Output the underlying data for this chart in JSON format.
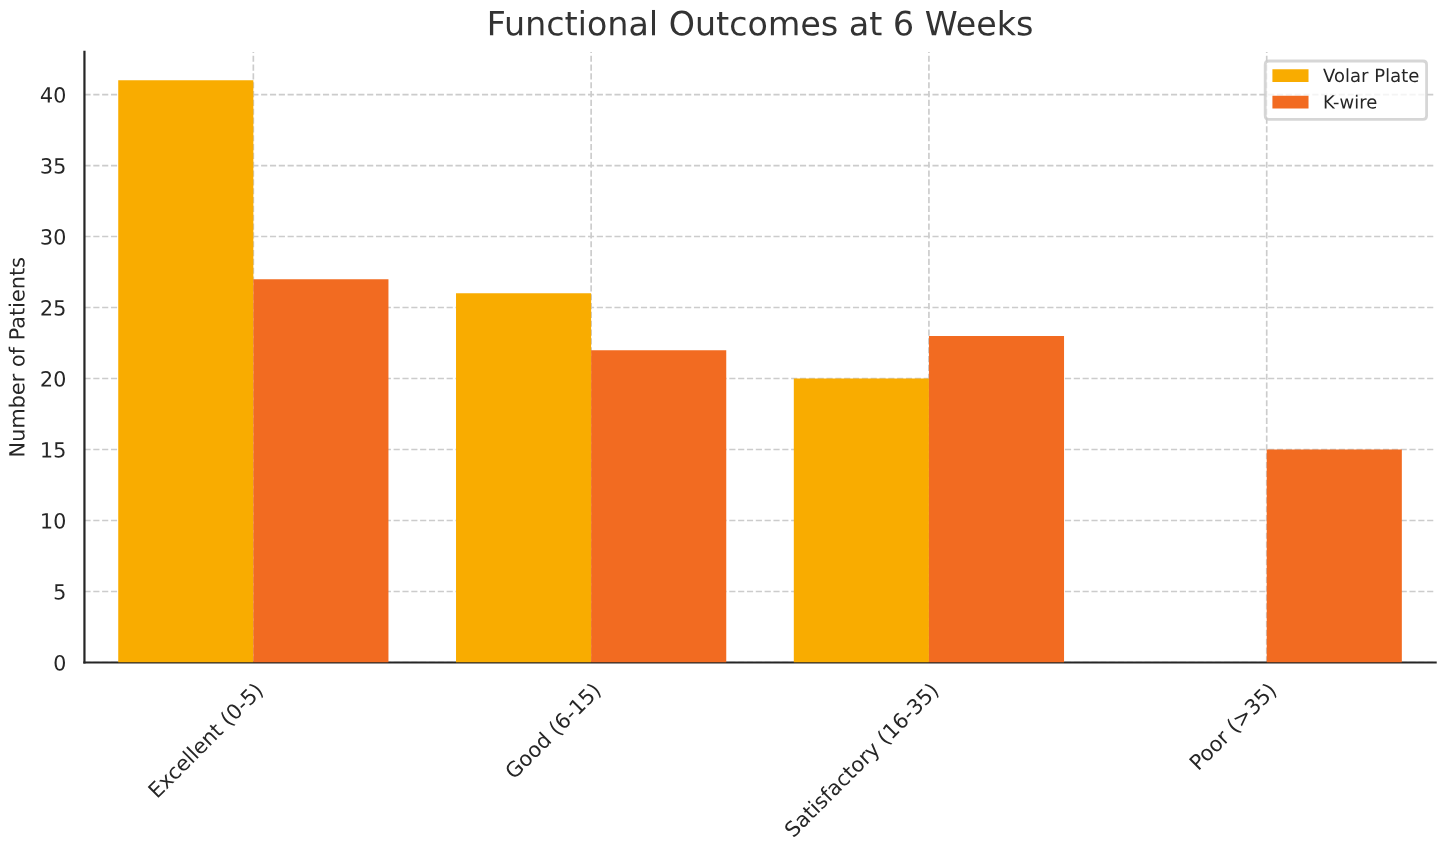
{
  "chart_data": {
    "type": "bar",
    "title": "Functional Outcomes at 6 Weeks",
    "ylabel": "Number of Patients",
    "categories": [
      "Excellent (0-5)",
      "Good (6-15)",
      "Satisfactory (16-35)",
      "Poor (>35)"
    ],
    "series": [
      {
        "name": "Volar Plate",
        "color": "#f9ac00",
        "values": [
          41,
          26,
          20,
          null
        ]
      },
      {
        "name": "K-wire",
        "color": "#f26b21",
        "values": [
          27,
          22,
          23,
          15
        ]
      }
    ],
    "ylim": [
      0,
      43
    ],
    "yticks": [
      0,
      5,
      10,
      15,
      20,
      25,
      30,
      35,
      40
    ],
    "grid": true,
    "legend": "top right"
  }
}
